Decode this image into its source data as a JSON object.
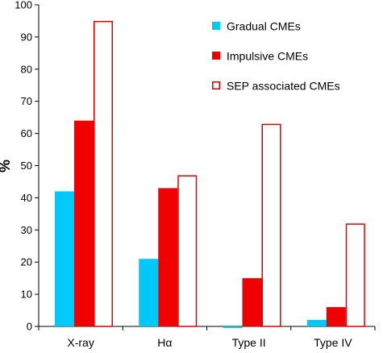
{
  "chart_data": {
    "type": "bar",
    "categories": [
      "X-ray",
      "Hα",
      "Type II",
      "Type IV"
    ],
    "series": [
      {
        "name": "Gradual CMEs",
        "values": [
          42,
          21,
          -0.5,
          2
        ],
        "color": "#00c8f8",
        "style": "filled"
      },
      {
        "name": "Impulsive CMEs",
        "values": [
          64,
          43,
          15,
          6
        ],
        "color": "#f00000",
        "style": "filled"
      },
      {
        "name": "SEP associated CMEs",
        "values": [
          95,
          47,
          63,
          32
        ],
        "color": "#e00000",
        "style": "outline"
      }
    ],
    "ylabel": "%",
    "ylim": [
      0,
      100
    ],
    "yticks": [
      0,
      10,
      20,
      30,
      40,
      50,
      60,
      70,
      80,
      90,
      100
    ],
    "legend_position": "top-right",
    "grid": false
  }
}
